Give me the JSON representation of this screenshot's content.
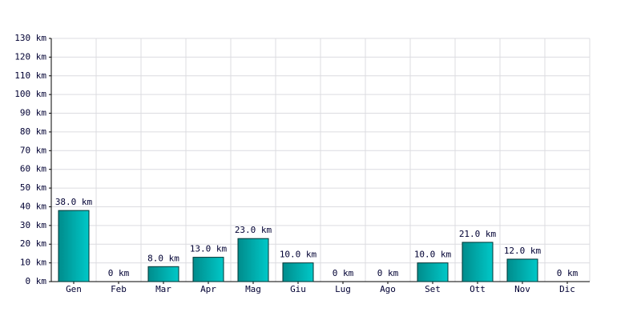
{
  "chart_data": {
    "type": "bar",
    "categories": [
      "Gen",
      "Feb",
      "Mar",
      "Apr",
      "Mag",
      "Giu",
      "Lug",
      "Ago",
      "Set",
      "Ott",
      "Nov",
      "Dic"
    ],
    "values": [
      38,
      0,
      8,
      13,
      23,
      10,
      0,
      0,
      10,
      21,
      12,
      0
    ],
    "value_labels": [
      "38.0 km",
      "0 km",
      "8.0 km",
      "13.0 km",
      "23.0 km",
      "10.0 km",
      "0 km",
      "0 km",
      "10.0 km",
      "21.0 km",
      "12.0 km",
      "0 km"
    ],
    "color": "#00c8c8",
    "ylim": [
      0,
      130
    ],
    "yticks": [
      {
        "value": 0,
        "label": "0 km"
      },
      {
        "value": 10,
        "label": "10 km"
      },
      {
        "value": 20,
        "label": "20 km"
      },
      {
        "value": 30,
        "label": "30 km"
      },
      {
        "value": 40,
        "label": "40 km"
      },
      {
        "value": 50,
        "label": "50 km"
      },
      {
        "value": 60,
        "label": "60 km"
      },
      {
        "value": 70,
        "label": "70 km"
      },
      {
        "value": 80,
        "label": "80 km"
      },
      {
        "value": 90,
        "label": "90 km"
      },
      {
        "value": 100,
        "label": "100 km"
      },
      {
        "value": 110,
        "label": "110 km"
      },
      {
        "value": 120,
        "label": "120 km"
      },
      {
        "value": 130,
        "label": "130 km"
      }
    ],
    "grid": true
  }
}
